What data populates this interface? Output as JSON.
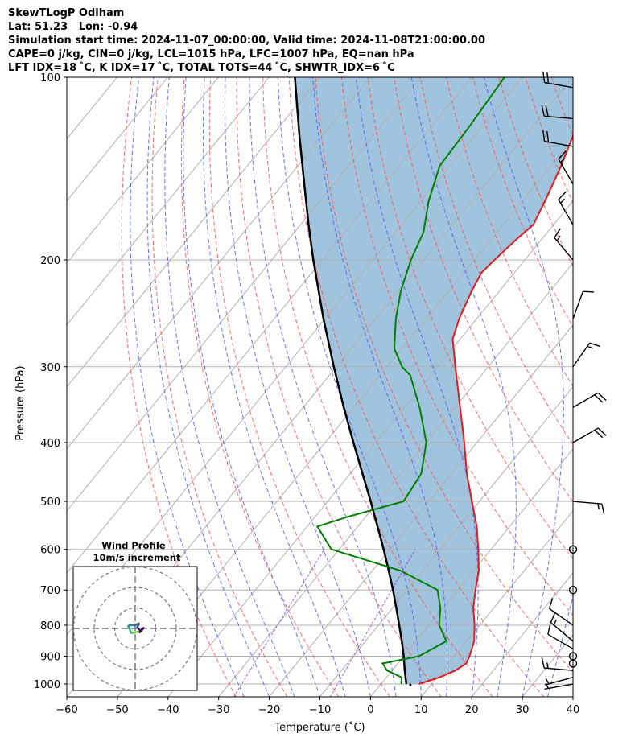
{
  "header": {
    "title": "SkewTLogP Odiham",
    "location": "Lat: 51.23   Lon: -0.94",
    "times": "Simulation start time: 2024-11-07_00:00:00, Valid time: 2024-11-08T21:00:00.00",
    "indices1": "CAPE=0 j/kg, CIN=0 j/kg, LCL=1015 hPa, LFC=1007 hPa, EQ=nan hPa",
    "indices2": "LFT IDX=18 ˚C, K IDX=17 ˚C, TOTAL TOTS=44 ˚C, SHWTR_IDX=6 ˚C"
  },
  "colors": {
    "temperature": "#e41a1c",
    "dewpoint": "#008000",
    "parcel": "#000000",
    "cape_fill": "#8fb8d8",
    "dry_adiabat": "#ff5050",
    "moist_adiabat": "#4a5cff",
    "mixing_ratio": "#a040d0",
    "isotherm": "#b0b0b0",
    "grid": "#b0b0b0"
  },
  "chart_data": {
    "type": "skewt",
    "xlabel": "Temperature (˚C)",
    "ylabel": "Pressure (hPa)",
    "xlim": [
      -60,
      40
    ],
    "ylim": [
      1050,
      100
    ],
    "xticks": [
      -60,
      -50,
      -40,
      -30,
      -20,
      -10,
      0,
      10,
      20,
      30,
      40
    ],
    "yticks": [
      1000,
      900,
      800,
      700,
      600,
      500,
      400,
      300,
      200,
      100
    ],
    "temperature_profile": [
      {
        "p": 1000,
        "t": 7.5
      },
      {
        "p": 975,
        "t": 10.5
      },
      {
        "p": 950,
        "t": 12.5
      },
      {
        "p": 925,
        "t": 13.5
      },
      {
        "p": 900,
        "t": 13.0
      },
      {
        "p": 850,
        "t": 11.5
      },
      {
        "p": 800,
        "t": 9.0
      },
      {
        "p": 750,
        "t": 6.0
      },
      {
        "p": 700,
        "t": 3.5
      },
      {
        "p": 650,
        "t": 1.0
      },
      {
        "p": 600,
        "t": -2.5
      },
      {
        "p": 550,
        "t": -6.5
      },
      {
        "p": 500,
        "t": -11.5
      },
      {
        "p": 450,
        "t": -17.0
      },
      {
        "p": 400,
        "t": -22.5
      },
      {
        "p": 350,
        "t": -29.0
      },
      {
        "p": 300,
        "t": -36.5
      },
      {
        "p": 270,
        "t": -41.5
      },
      {
        "p": 250,
        "t": -43.5
      },
      {
        "p": 225,
        "t": -45.5
      },
      {
        "p": 210,
        "t": -46.5
      },
      {
        "p": 200,
        "t": -46.0
      },
      {
        "p": 185,
        "t": -45.0
      },
      {
        "p": 175,
        "t": -44.0
      },
      {
        "p": 160,
        "t": -45.5
      },
      {
        "p": 140,
        "t": -48.0
      },
      {
        "p": 125,
        "t": -50.5
      },
      {
        "p": 110,
        "t": -51.0
      },
      {
        "p": 100,
        "t": -51.5
      }
    ],
    "dewpoint_profile": [
      {
        "p": 1000,
        "t": 4.0
      },
      {
        "p": 975,
        "t": 3.0
      },
      {
        "p": 950,
        "t": -1.0
      },
      {
        "p": 925,
        "t": -3.0
      },
      {
        "p": 900,
        "t": 3.0
      },
      {
        "p": 850,
        "t": 6.0
      },
      {
        "p": 800,
        "t": 2.0
      },
      {
        "p": 750,
        "t": -0.5
      },
      {
        "p": 700,
        "t": -4.0
      },
      {
        "p": 650,
        "t": -14.5
      },
      {
        "p": 600,
        "t": -31.5
      },
      {
        "p": 550,
        "t": -38.0
      },
      {
        "p": 530,
        "t": -33.5
      },
      {
        "p": 500,
        "t": -25.0
      },
      {
        "p": 450,
        "t": -26.0
      },
      {
        "p": 400,
        "t": -30.0
      },
      {
        "p": 350,
        "t": -37.0
      },
      {
        "p": 310,
        "t": -44.0
      },
      {
        "p": 300,
        "t": -47.0
      },
      {
        "p": 280,
        "t": -51.5
      },
      {
        "p": 250,
        "t": -56.0
      },
      {
        "p": 225,
        "t": -59.5
      },
      {
        "p": 200,
        "t": -62.5
      },
      {
        "p": 180,
        "t": -64.5
      },
      {
        "p": 160,
        "t": -68.5
      },
      {
        "p": 140,
        "t": -72.0
      },
      {
        "p": 120,
        "t": -72.5
      },
      {
        "p": 100,
        "t": -73.5
      }
    ],
    "parcel_profile": [
      {
        "p": 1000,
        "t": 5.0
      },
      {
        "p": 950,
        "t": 2.5
      },
      {
        "p": 900,
        "t": 0.0
      },
      {
        "p": 850,
        "t": -2.8
      },
      {
        "p": 800,
        "t": -5.9
      },
      {
        "p": 750,
        "t": -9.2
      },
      {
        "p": 700,
        "t": -12.8
      },
      {
        "p": 650,
        "t": -16.8
      },
      {
        "p": 600,
        "t": -21.2
      },
      {
        "p": 550,
        "t": -26.1
      },
      {
        "p": 500,
        "t": -31.5
      },
      {
        "p": 450,
        "t": -37.6
      },
      {
        "p": 400,
        "t": -44.4
      },
      {
        "p": 350,
        "t": -52.0
      },
      {
        "p": 300,
        "t": -60.5
      },
      {
        "p": 250,
        "t": -70.3
      },
      {
        "p": 200,
        "t": -81.8
      },
      {
        "p": 175,
        "t": -88.4
      },
      {
        "p": 150,
        "t": -95.8
      },
      {
        "p": 125,
        "t": -104.5
      },
      {
        "p": 100,
        "t": -114.9
      }
    ],
    "wind_barbs": [
      {
        "p": 1000,
        "dir": 260,
        "speed_kt": 5
      },
      {
        "p": 975,
        "dir": 255,
        "speed_kt": 5
      },
      {
        "p": 950,
        "dir": 275,
        "speed_kt": 15
      },
      {
        "p": 925,
        "dir": 0,
        "speed_kt": 0
      },
      {
        "p": 900,
        "dir": 0,
        "speed_kt": 0
      },
      {
        "p": 875,
        "dir": 300,
        "speed_kt": 10
      },
      {
        "p": 850,
        "dir": 310,
        "speed_kt": 15
      },
      {
        "p": 800,
        "dir": 305,
        "speed_kt": 10
      },
      {
        "p": 700,
        "dir": 0,
        "speed_kt": 0
      },
      {
        "p": 600,
        "dir": 0,
        "speed_kt": 0
      },
      {
        "p": 500,
        "dir": 95,
        "speed_kt": 15
      },
      {
        "p": 400,
        "dir": 60,
        "speed_kt": 20
      },
      {
        "p": 350,
        "dir": 60,
        "speed_kt": 20
      },
      {
        "p": 300,
        "dir": 35,
        "speed_kt": 15
      },
      {
        "p": 250,
        "dir": 20,
        "speed_kt": 10
      },
      {
        "p": 200,
        "dir": 320,
        "speed_kt": 15
      },
      {
        "p": 175,
        "dir": 330,
        "speed_kt": 15
      },
      {
        "p": 150,
        "dir": 330,
        "speed_kt": 15
      },
      {
        "p": 130,
        "dir": 280,
        "speed_kt": 20
      },
      {
        "p": 117,
        "dir": 275,
        "speed_kt": 20
      },
      {
        "p": 104,
        "dir": 280,
        "speed_kt": 20
      }
    ],
    "hodograph": {
      "title": "Wind Profile",
      "subtitle": "10m/s increment",
      "points": [
        {
          "u": 3.0,
          "v": -1.5
        },
        {
          "u": 2.5,
          "v": -1.2
        },
        {
          "u": 1.5,
          "v": -1.5
        },
        {
          "u": -0.5,
          "v": -2.0
        },
        {
          "u": -2.0,
          "v": -2.2
        },
        {
          "u": -2.5,
          "v": -0.8
        },
        {
          "u": -3.0,
          "v": 0.3
        },
        {
          "u": -3.3,
          "v": 1.2
        },
        {
          "u": -2.0,
          "v": 1.8
        },
        {
          "u": -0.5,
          "v": 1.5
        },
        {
          "u": 0.8,
          "v": 2.0
        },
        {
          "u": 1.8,
          "v": 2.3
        },
        {
          "u": 1.0,
          "v": 0.5
        },
        {
          "u": 2.0,
          "v": -0.5
        },
        {
          "u": 2.8,
          "v": -1.2
        },
        {
          "u": 4.0,
          "v": 0.2
        },
        {
          "u": 2.2,
          "v": -1.8
        }
      ]
    }
  }
}
